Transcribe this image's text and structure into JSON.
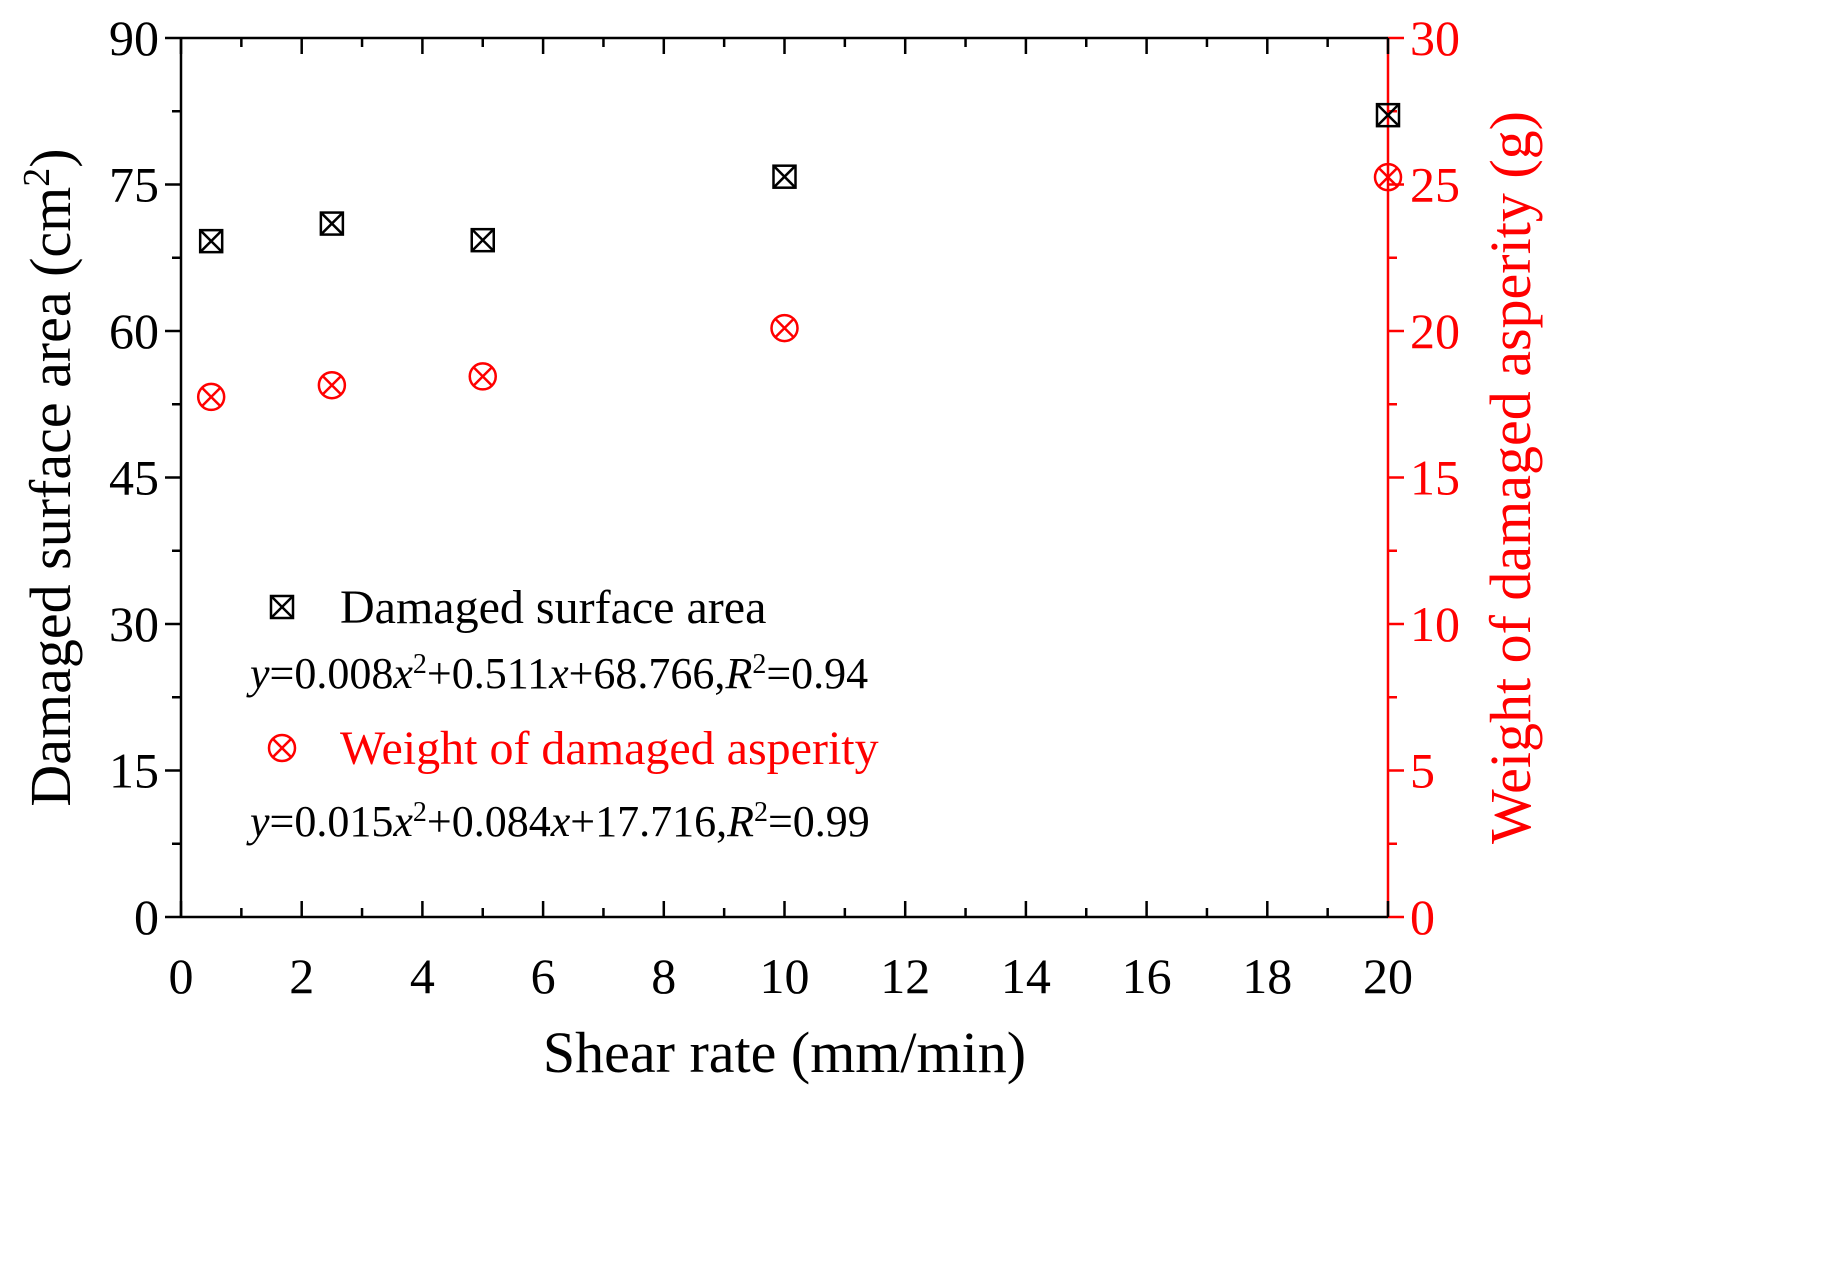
{
  "chart_data": {
    "type": "scatter",
    "x_axis": {
      "label": "Shear rate (mm/min)",
      "range": [
        0,
        20
      ],
      "ticks": [
        "0",
        "2",
        "4",
        "6",
        "8",
        "10",
        "12",
        "14",
        "16",
        "18",
        "20"
      ],
      "minor_step": 1
    },
    "y_axis_left": {
      "label_main": "Damaged surface area (cm",
      "label_sup": "2",
      "label_end": ")",
      "range": [
        0,
        90
      ],
      "ticks": [
        "0",
        "15",
        "30",
        "45",
        "60",
        "75",
        "90"
      ],
      "minor_step": 7.5,
      "color": "#000000"
    },
    "y_axis_right": {
      "label": "Weight  of damaged asperity (g)",
      "range": [
        0,
        30
      ],
      "ticks": [
        "0",
        "5",
        "10",
        "15",
        "20",
        "25",
        "30"
      ],
      "minor_step": 2.5,
      "color": "#ff0000"
    },
    "series": [
      {
        "name": "Damaged surface area",
        "axis": "left",
        "marker": "square-x",
        "color": "#000000",
        "x": [
          0.5,
          2.5,
          5,
          10,
          20
        ],
        "y": [
          69.2,
          71.0,
          69.3,
          75.8,
          82.1
        ]
      },
      {
        "name": "Weight of damaged asperity",
        "axis": "right",
        "marker": "circle-x",
        "color": "#ff0000",
        "x": [
          0.5,
          2.5,
          5,
          10,
          20
        ],
        "y": [
          17.75,
          18.15,
          18.45,
          20.1,
          25.25
        ]
      }
    ],
    "annotations": [
      {
        "series": 0,
        "parts": [
          [
            "y",
            "i",
            false
          ],
          [
            "=0.008",
            "n",
            false
          ],
          [
            "x",
            "i",
            false
          ],
          [
            "2",
            "n",
            true
          ],
          [
            "+0.511",
            "n",
            false
          ],
          [
            "x",
            "i",
            false
          ],
          [
            "+68.766,",
            "n",
            false
          ],
          [
            "R",
            "i",
            false
          ],
          [
            "2",
            "n",
            true
          ],
          [
            "=0.94",
            "n",
            false
          ]
        ]
      },
      {
        "series": 1,
        "parts": [
          [
            "y",
            "i",
            false
          ],
          [
            "=0.015",
            "n",
            false
          ],
          [
            "x",
            "i",
            false
          ],
          [
            "2",
            "n",
            true
          ],
          [
            "+0.084",
            "n",
            false
          ],
          [
            "x",
            "i",
            false
          ],
          [
            "+17.716,",
            "n",
            false
          ],
          [
            "R",
            "i",
            false
          ],
          [
            "2",
            "n",
            true
          ],
          [
            "=0.99",
            "n",
            false
          ]
        ]
      }
    ],
    "legend_position": "lower-left",
    "grid": false
  }
}
